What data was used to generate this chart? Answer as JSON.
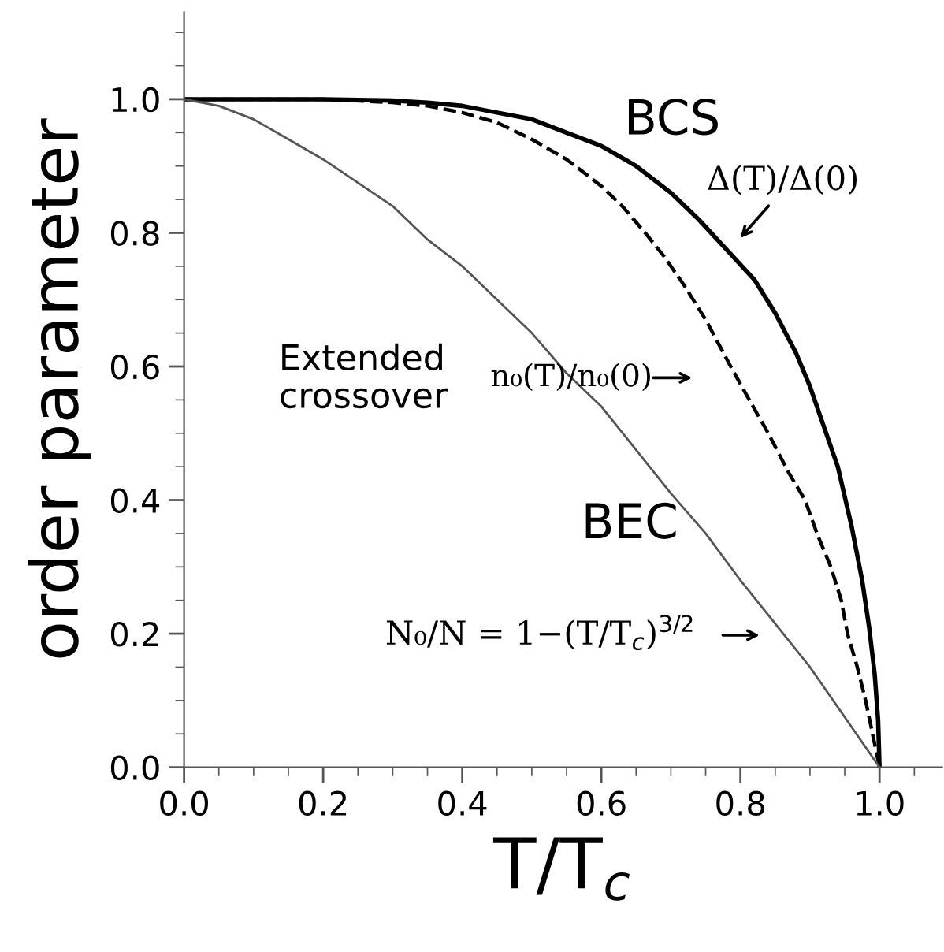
{
  "chart_data": {
    "type": "line",
    "xlabel": "T/T$_{c}$",
    "ylabel": "order parameter",
    "xlim": [
      0,
      1.09
    ],
    "ylim": [
      0,
      1.13
    ],
    "xticks": [
      {
        "value": 0,
        "label": "0.0"
      },
      0.2,
      0.4,
      0.6,
      0.8,
      {
        "value": 1,
        "label": "1.0"
      }
    ],
    "yticks": [
      {
        "value": 0,
        "label": "0.0"
      },
      0.2,
      0.4,
      0.6,
      0.8,
      {
        "value": 1,
        "label": "1.0"
      }
    ],
    "grid": false,
    "legend": false,
    "marker": "none",
    "series": [
      {
        "name": "BCS",
        "color": "#000000",
        "line_style": "solid",
        "x": [
          0,
          0.1,
          0.2,
          0.3,
          0.35,
          0.4,
          0.45,
          0.5,
          0.55,
          0.6,
          0.65,
          0.7,
          0.74,
          0.78,
          0.82,
          0.85,
          0.88,
          0.9,
          0.92,
          0.94,
          0.96,
          0.975,
          0.985,
          0.993,
          0.998,
          1.0
        ],
        "values": [
          1.0,
          1.0,
          1.0,
          0.998,
          0.995,
          0.99,
          0.98,
          0.97,
          0.95,
          0.93,
          0.9,
          0.86,
          0.82,
          0.775,
          0.73,
          0.68,
          0.62,
          0.57,
          0.51,
          0.45,
          0.36,
          0.28,
          0.21,
          0.14,
          0.07,
          0.0
        ]
      },
      {
        "color": "#000000",
        "line_style": "dashed",
        "x": [
          0,
          0.1,
          0.2,
          0.3,
          0.35,
          0.4,
          0.45,
          0.5,
          0.55,
          0.6,
          0.63,
          0.663,
          0.69,
          0.72,
          0.75,
          0.786,
          0.81,
          0.84,
          0.87,
          0.893,
          0.91,
          0.93,
          0.945,
          0.954,
          0.968,
          0.98,
          0.99,
          1.0
        ],
        "values": [
          1.0,
          1.0,
          1.0,
          0.995,
          0.99,
          0.98,
          0.965,
          0.94,
          0.91,
          0.87,
          0.84,
          0.8,
          0.765,
          0.72,
          0.67,
          0.6,
          0.555,
          0.5,
          0.44,
          0.4,
          0.35,
          0.3,
          0.25,
          0.2,
          0.15,
          0.1,
          0.05,
          0.0
        ]
      },
      {
        "name": "BEC",
        "color": "#555555",
        "line_style": "solid",
        "x": [
          0,
          0.05,
          0.1,
          0.15,
          0.2,
          0.25,
          0.3,
          0.35,
          0.4,
          0.45,
          0.5,
          0.55,
          0.6,
          0.65,
          0.7,
          0.75,
          0.8,
          0.85,
          0.9,
          0.95,
          1.0
        ],
        "values": [
          1.0,
          0.99,
          0.97,
          0.94,
          0.91,
          0.875,
          0.84,
          0.79,
          0.75,
          0.7,
          0.65,
          0.59,
          0.54,
          0.475,
          0.41,
          0.35,
          0.28,
          0.215,
          0.15,
          0.075,
          0.0
        ]
      }
    ],
    "annotations": [
      "Δ(T)/Δ(0)",
      "Extended crossover",
      "n₀(T)/n₀(0)",
      "N₀/N = 1−(T/T$_{c}$)$^{3/2}$"
    ]
  }
}
